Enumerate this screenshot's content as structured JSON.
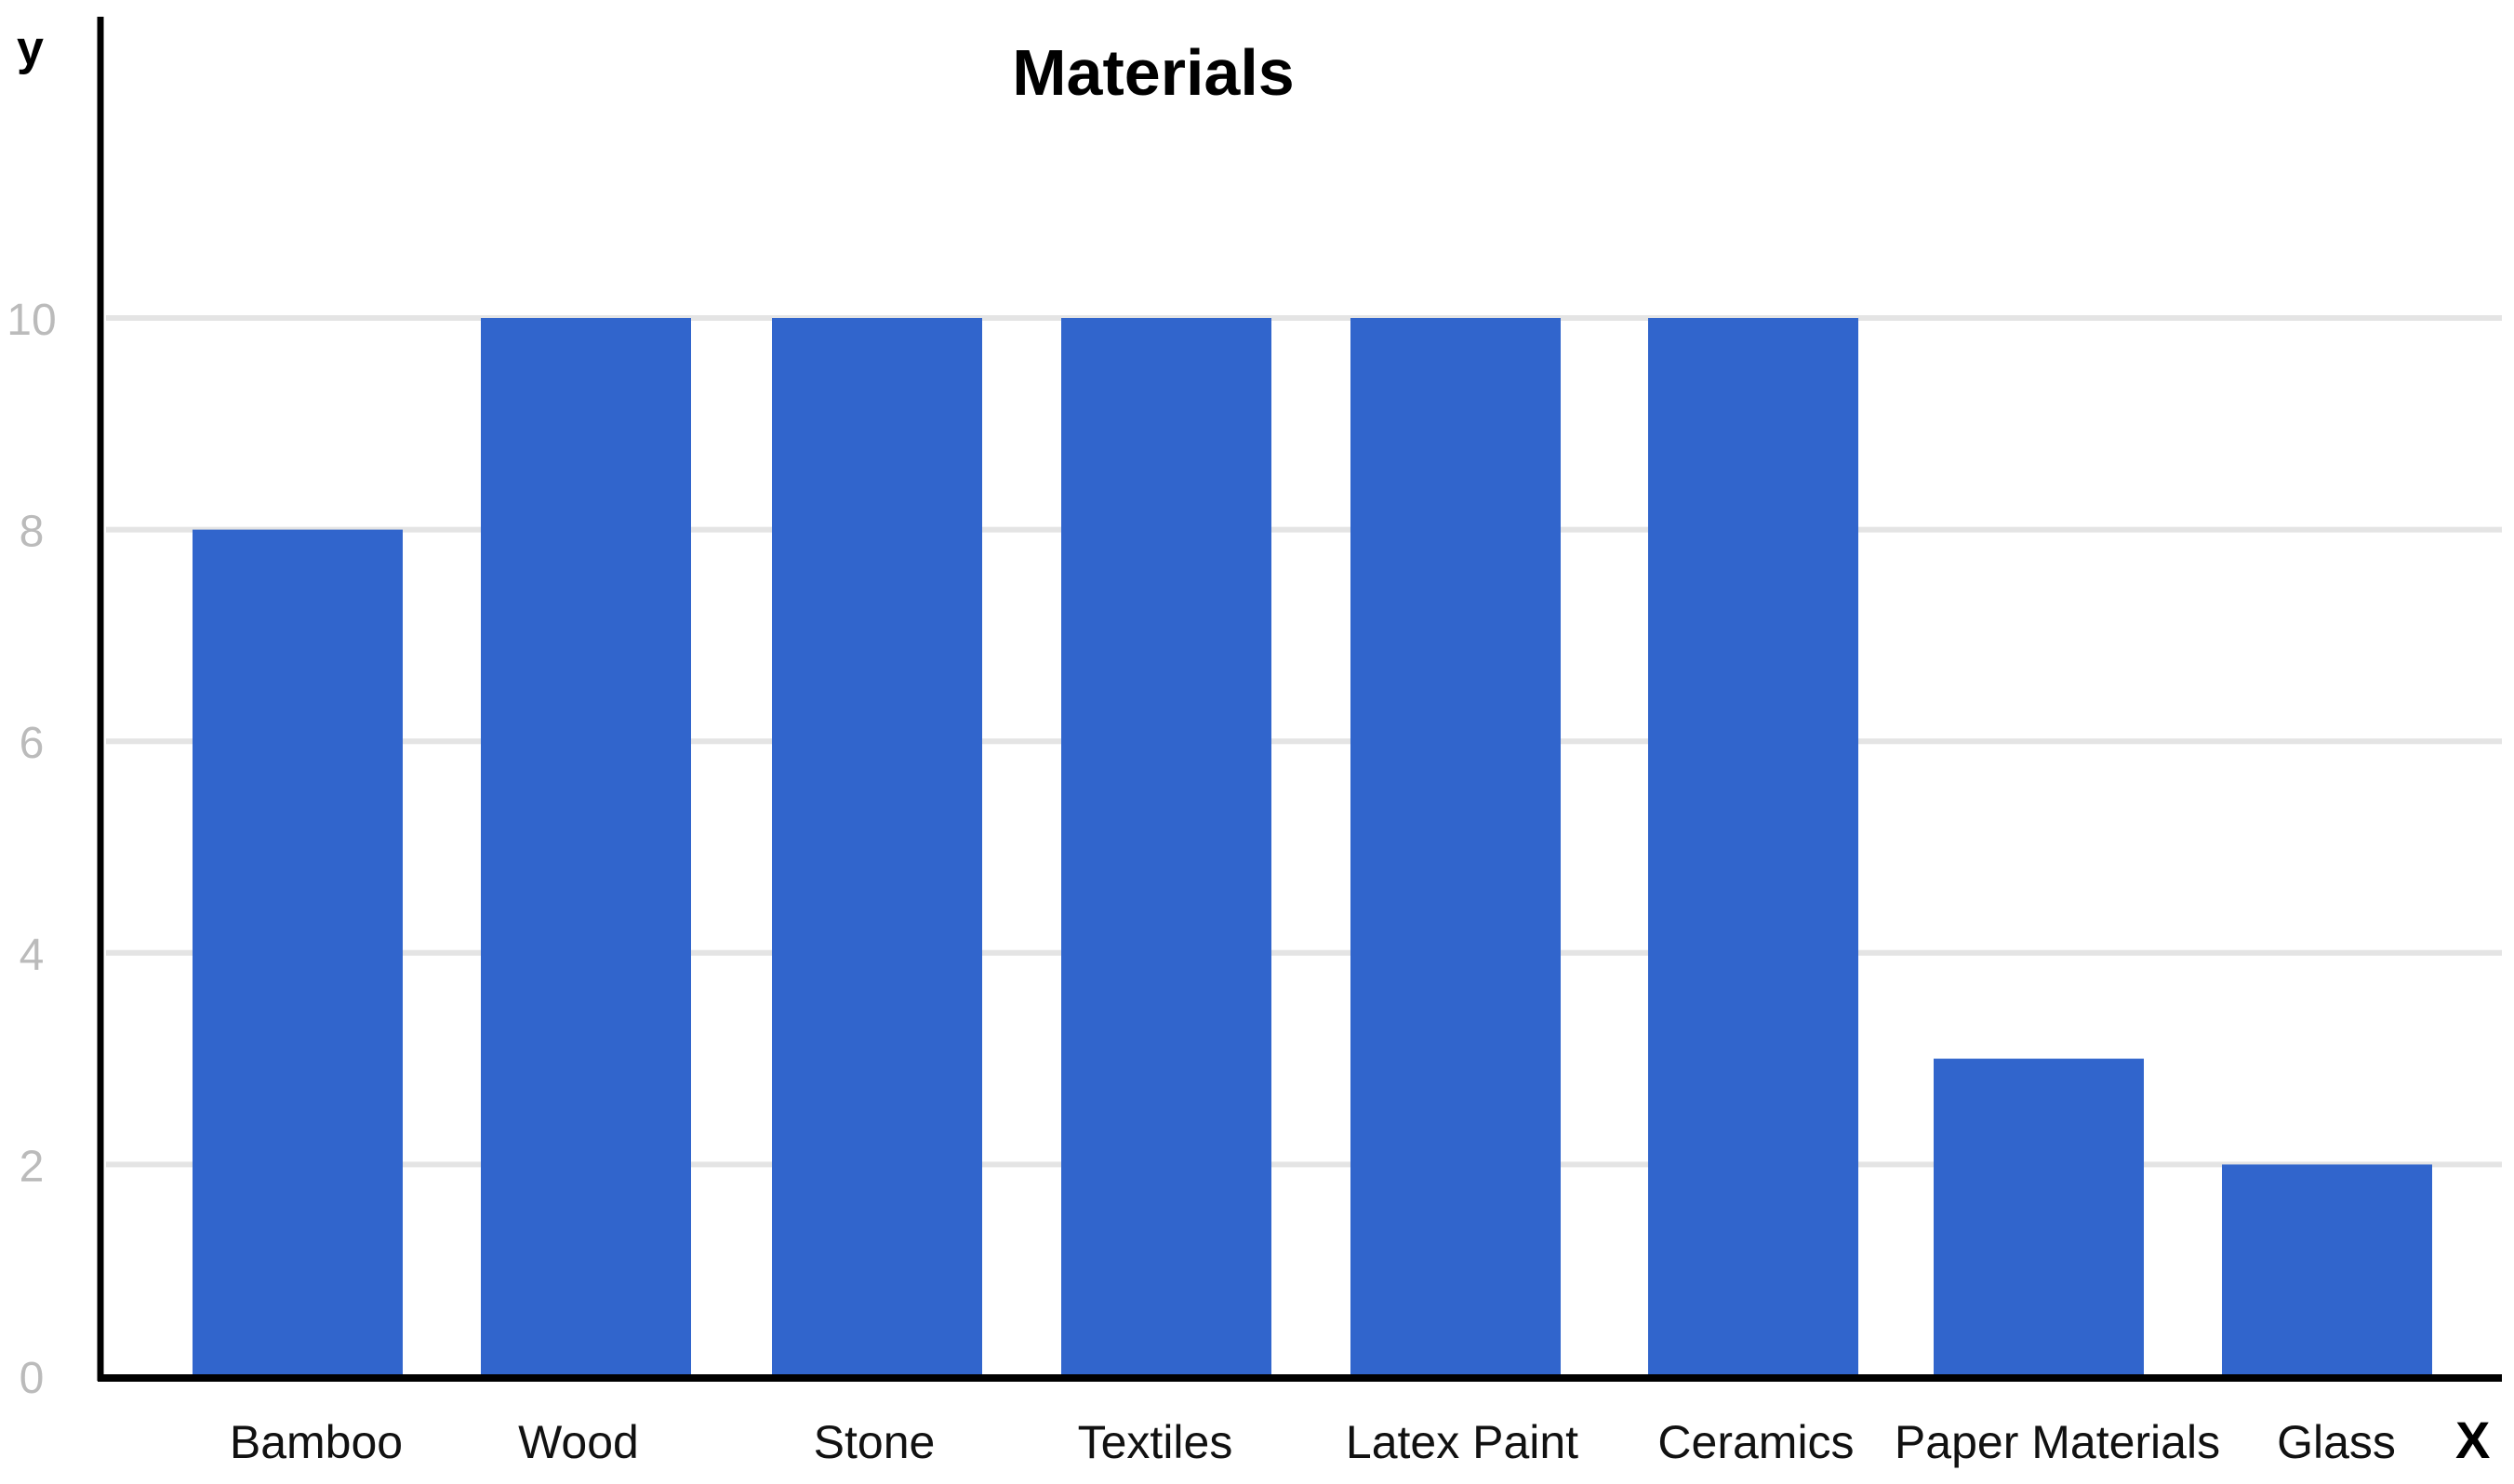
{
  "chart_data": {
    "type": "bar",
    "title": "Materials",
    "xlabel": "X",
    "ylabel": "y",
    "categories": [
      "Bamboo",
      "Wood",
      "Stone",
      "Textiles",
      "Latex Paint",
      "Ceramics",
      "Paper Materials",
      "Glass"
    ],
    "values": [
      8,
      10,
      10,
      10,
      10,
      10,
      3,
      2
    ],
    "y_ticks": [
      "0",
      "2",
      "4",
      "6",
      "8",
      "10"
    ],
    "ylim": [
      0,
      12.6
    ],
    "grid": true,
    "legend": "none",
    "colors": {
      "bar": "#3165CC",
      "grid": "#E4E4E4",
      "tick_label": "#BBBBBB",
      "axis": "#000000",
      "category_label": "#111111"
    }
  }
}
